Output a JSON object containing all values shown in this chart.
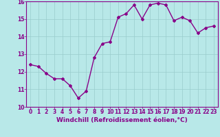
{
  "x": [
    0,
    1,
    2,
    3,
    4,
    5,
    6,
    7,
    8,
    9,
    10,
    11,
    12,
    13,
    14,
    15,
    16,
    17,
    18,
    19,
    20,
    21,
    22,
    23
  ],
  "y": [
    12.4,
    12.3,
    11.9,
    11.6,
    11.6,
    11.2,
    10.5,
    10.9,
    12.8,
    13.6,
    13.7,
    15.1,
    15.3,
    15.8,
    15.0,
    15.8,
    15.9,
    15.8,
    14.9,
    15.1,
    14.9,
    14.2,
    14.5,
    14.6
  ],
  "line_color": "#880088",
  "marker": "D",
  "marker_size": 2,
  "bg_color": "#b8e8e8",
  "grid_color": "#99cccc",
  "tick_color": "#880088",
  "xlabel": "Windchill (Refroidissement éolien,°C)",
  "xlabel_color": "#880088",
  "ylim": [
    10,
    16
  ],
  "xlim": [
    -0.5,
    23.5
  ],
  "yticks": [
    10,
    11,
    12,
    13,
    14,
    15,
    16
  ],
  "xticks": [
    0,
    1,
    2,
    3,
    4,
    5,
    6,
    7,
    8,
    9,
    10,
    11,
    12,
    13,
    14,
    15,
    16,
    17,
    18,
    19,
    20,
    21,
    22,
    23
  ],
  "tick_label_size": 5.5,
  "xlabel_size": 6.5,
  "linewidth": 1.0
}
